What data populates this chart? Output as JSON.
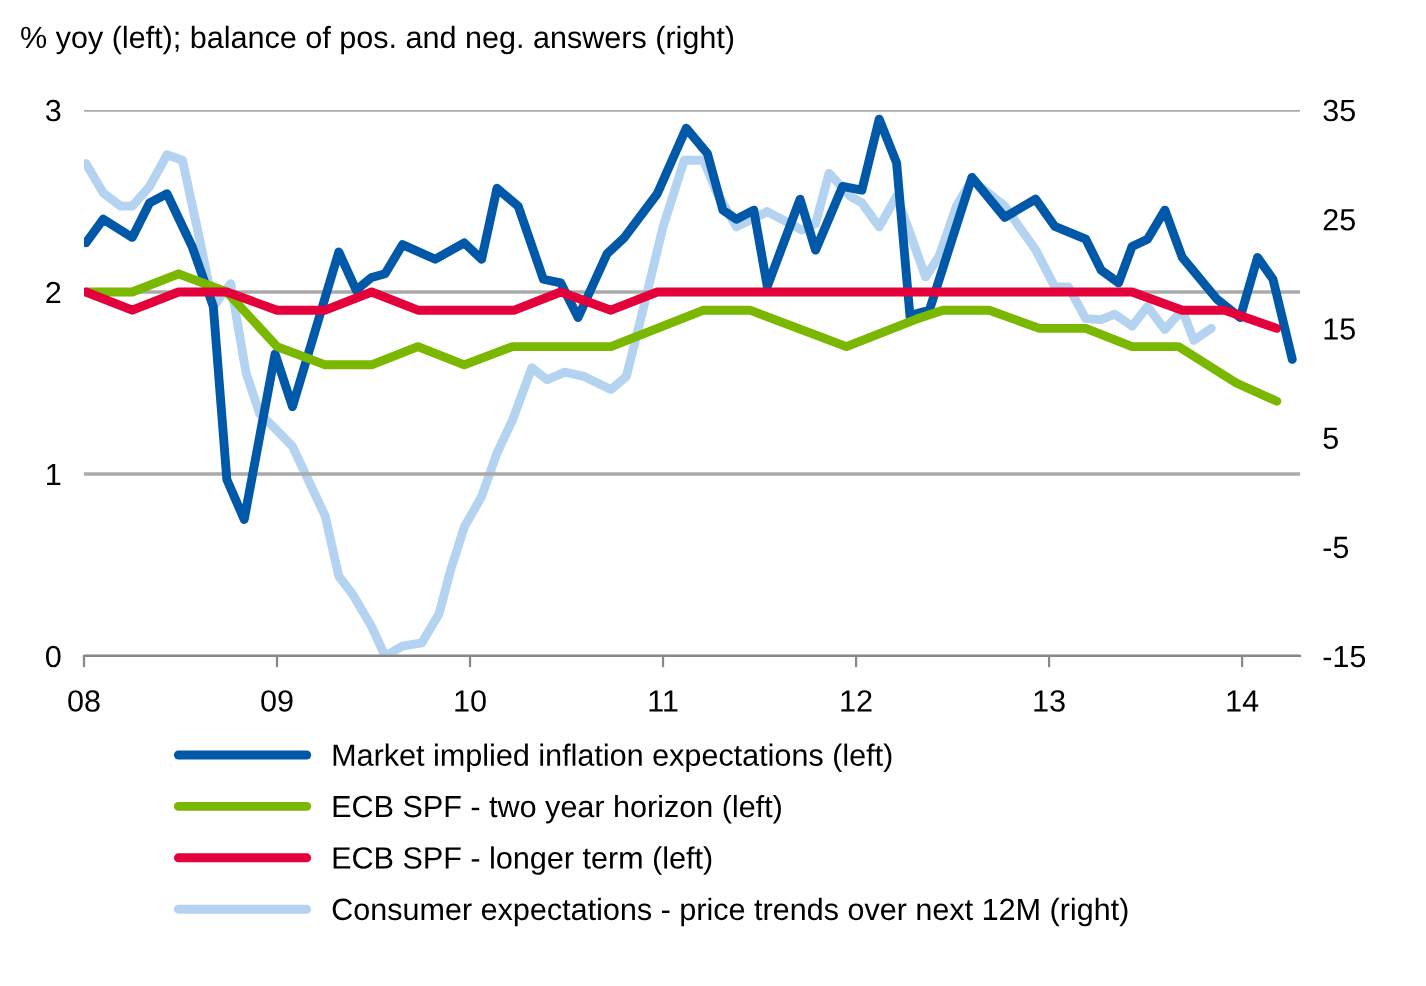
{
  "chart_data": {
    "type": "line",
    "title": "% yoy (left); balance of pos. and neg. answers (right)",
    "xlim": [
      2008,
      2014.3
    ],
    "xticks": [
      {
        "value": 2008,
        "label": "08"
      },
      {
        "value": 2009,
        "label": "09"
      },
      {
        "value": 2010,
        "label": "10"
      },
      {
        "value": 2011,
        "label": "11"
      },
      {
        "value": 2012,
        "label": "12"
      },
      {
        "value": 2013,
        "label": "13"
      },
      {
        "value": 2014,
        "label": "14"
      }
    ],
    "ylim": [
      0,
      3
    ],
    "yticks": [
      0,
      1,
      2,
      3
    ],
    "y2lim": [
      -15,
      35
    ],
    "y2ticks": [
      -15,
      -5,
      5,
      15,
      25,
      35
    ],
    "grid": "y",
    "legend": "bottom",
    "line_style": "solid",
    "marker": "none",
    "series": [
      {
        "name": "Market implied inflation expectations (left)",
        "color": "#0058a8",
        "x": [
          2008.01,
          2008.1,
          2008.25,
          2008.34,
          2008.43,
          2008.56,
          2008.67,
          2008.74,
          2008.83,
          2008.99,
          2009.08,
          2009.32,
          2009.41,
          2009.49,
          2009.56,
          2009.65,
          2009.82,
          2009.97,
          2010.06,
          2010.14,
          2010.25,
          2010.38,
          2010.47,
          2010.56,
          2010.71,
          2010.8,
          2010.97,
          2011.12,
          2011.23,
          2011.31,
          2011.38,
          2011.47,
          2011.54,
          2011.71,
          2011.79,
          2011.93,
          2012.03,
          2012.12,
          2012.21,
          2012.28,
          2012.31,
          2012.38,
          2012.6,
          2012.77,
          2012.93,
          2013.03,
          2013.19,
          2013.27,
          2013.36,
          2013.43,
          2013.51,
          2013.6,
          2013.69,
          2013.87,
          2013.99,
          2014.08,
          2014.16,
          2014.26
        ],
        "values": [
          2.27,
          2.4,
          2.3,
          2.49,
          2.54,
          2.25,
          1.92,
          0.97,
          0.75,
          1.66,
          1.37,
          2.22,
          2.01,
          2.08,
          2.1,
          2.26,
          2.18,
          2.27,
          2.18,
          2.57,
          2.47,
          2.07,
          2.05,
          1.86,
          2.21,
          2.3,
          2.54,
          2.9,
          2.76,
          2.45,
          2.4,
          2.45,
          2.03,
          2.51,
          2.23,
          2.58,
          2.56,
          2.95,
          2.71,
          1.86,
          1.88,
          1.9,
          2.63,
          2.41,
          2.51,
          2.36,
          2.29,
          2.12,
          2.05,
          2.25,
          2.29,
          2.45,
          2.19,
          1.96,
          1.86,
          2.19,
          2.07,
          1.63
        ]
      },
      {
        "name": "ECB SPF - two year horizon (left)",
        "color": "#7ab800",
        "x": [
          2008.01,
          2008.25,
          2008.49,
          2008.74,
          2009.0,
          2009.25,
          2009.49,
          2009.73,
          2009.97,
          2010.22,
          2010.73,
          2010.97,
          2011.21,
          2011.45,
          2011.95,
          2012.31,
          2012.45,
          2012.69,
          2012.95,
          2013.19,
          2013.43,
          2013.67,
          2013.97,
          2014.18
        ],
        "values": [
          2.0,
          2.0,
          2.1,
          2.0,
          1.7,
          1.6,
          1.6,
          1.7,
          1.6,
          1.7,
          1.7,
          1.8,
          1.9,
          1.9,
          1.7,
          1.85,
          1.9,
          1.9,
          1.8,
          1.8,
          1.7,
          1.7,
          1.5,
          1.4
        ]
      },
      {
        "name": "ECB SPF - longer term (left)",
        "color": "#e4003a",
        "x": [
          2008.01,
          2008.25,
          2008.49,
          2008.74,
          2009.0,
          2009.25,
          2009.49,
          2009.73,
          2009.97,
          2010.23,
          2010.47,
          2010.73,
          2010.97,
          2011.45,
          2011.95,
          2012.45,
          2012.95,
          2013.43,
          2013.69,
          2013.91,
          2014.18
        ],
        "values": [
          2.0,
          1.9,
          2.0,
          2.0,
          1.9,
          1.9,
          2.0,
          1.9,
          1.9,
          1.9,
          2.0,
          1.9,
          2.0,
          2.0,
          2.0,
          2.0,
          2.0,
          2.0,
          1.9,
          1.9,
          1.8
        ]
      },
      {
        "name": "Consumer expectations - price trends over next 12M (right)",
        "color": "#b4d3f0",
        "axis": "y2",
        "x": [
          2008.01,
          2008.1,
          2008.19,
          2008.25,
          2008.34,
          2008.43,
          2008.51,
          2008.6,
          2008.67,
          2008.76,
          2008.84,
          2008.91,
          2008.98,
          2009.08,
          2009.25,
          2009.32,
          2009.39,
          2009.49,
          2009.56,
          2009.65,
          2009.75,
          2009.84,
          2009.9,
          2009.97,
          2010.06,
          2010.14,
          2010.22,
          2010.32,
          2010.4,
          2010.49,
          2010.59,
          2010.73,
          2010.81,
          2010.9,
          2011.0,
          2011.11,
          2011.21,
          2011.28,
          2011.38,
          2011.54,
          2011.72,
          2011.79,
          2011.86,
          2011.97,
          2012.03,
          2012.12,
          2012.21,
          2012.28,
          2012.36,
          2012.43,
          2012.52,
          2012.6,
          2012.77,
          2012.93,
          2013.03,
          2013.1,
          2013.19,
          2013.27,
          2013.34,
          2013.43,
          2013.51,
          2013.6,
          2013.69,
          2013.75,
          2013.84
        ],
        "values": [
          30.1,
          27.4,
          26.2,
          26.2,
          28.0,
          30.9,
          30.4,
          23.1,
          17.0,
          19.1,
          10.9,
          7.2,
          6.0,
          4.2,
          -2.2,
          -7.7,
          -9.3,
          -12.3,
          -15.0,
          -14.1,
          -13.8,
          -11.1,
          -7.1,
          -3.2,
          -0.4,
          3.6,
          6.6,
          11.4,
          10.3,
          11.0,
          10.6,
          9.4,
          10.6,
          17.0,
          24.3,
          30.4,
          30.4,
          27.4,
          24.3,
          25.7,
          24.0,
          24.6,
          29.2,
          27.1,
          26.5,
          24.3,
          27.1,
          23.7,
          19.7,
          21.6,
          26.2,
          28.6,
          26.2,
          22.2,
          18.8,
          18.8,
          15.9,
          15.8,
          16.3,
          15.2,
          17.0,
          14.9,
          16.7,
          13.9,
          15.0
        ]
      }
    ]
  }
}
